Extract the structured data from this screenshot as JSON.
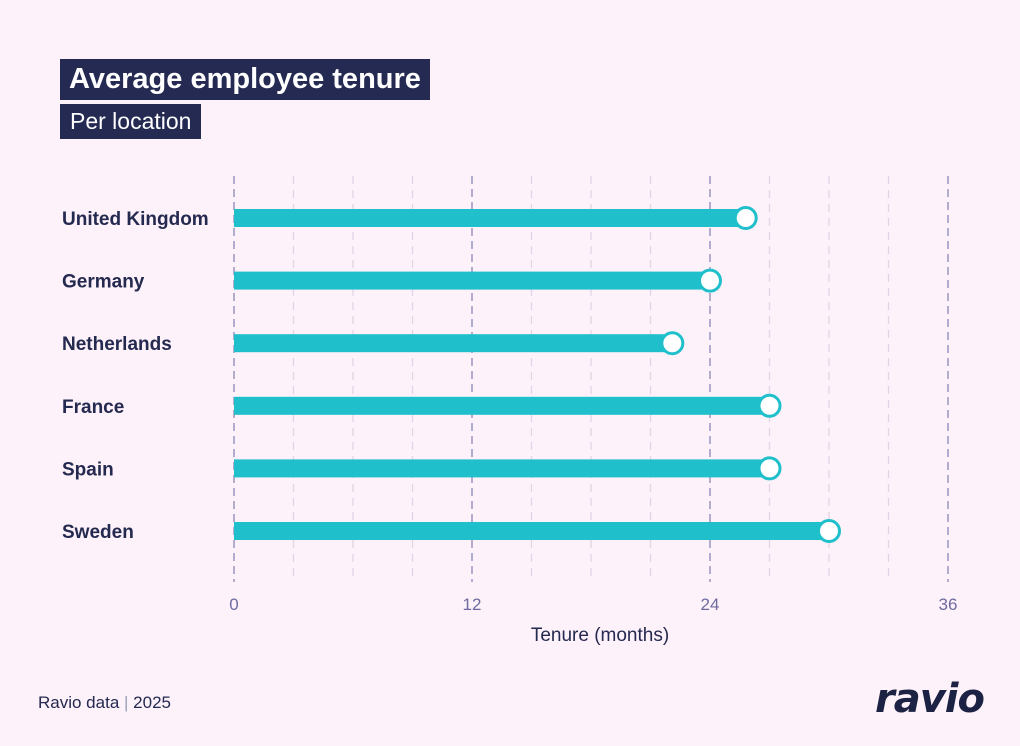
{
  "chart_data": {
    "type": "bar",
    "orientation": "horizontal",
    "title": "Average employee tenure",
    "subtitle": "Per location",
    "categories": [
      "United Kingdom",
      "Germany",
      "Netherlands",
      "France",
      "Spain",
      "Sweden"
    ],
    "values": [
      25.8,
      24.0,
      22.1,
      27.0,
      27.0,
      30.0
    ],
    "xlabel": "Tenure (months)",
    "xlim": [
      0,
      36
    ],
    "xticks": [
      0,
      12,
      24,
      36
    ],
    "minor_grid_step": 3,
    "grid": true,
    "bar_color": "#1fbfcb"
  },
  "footer": {
    "source": "Ravio data",
    "year": "2025"
  },
  "logo": "ravio"
}
